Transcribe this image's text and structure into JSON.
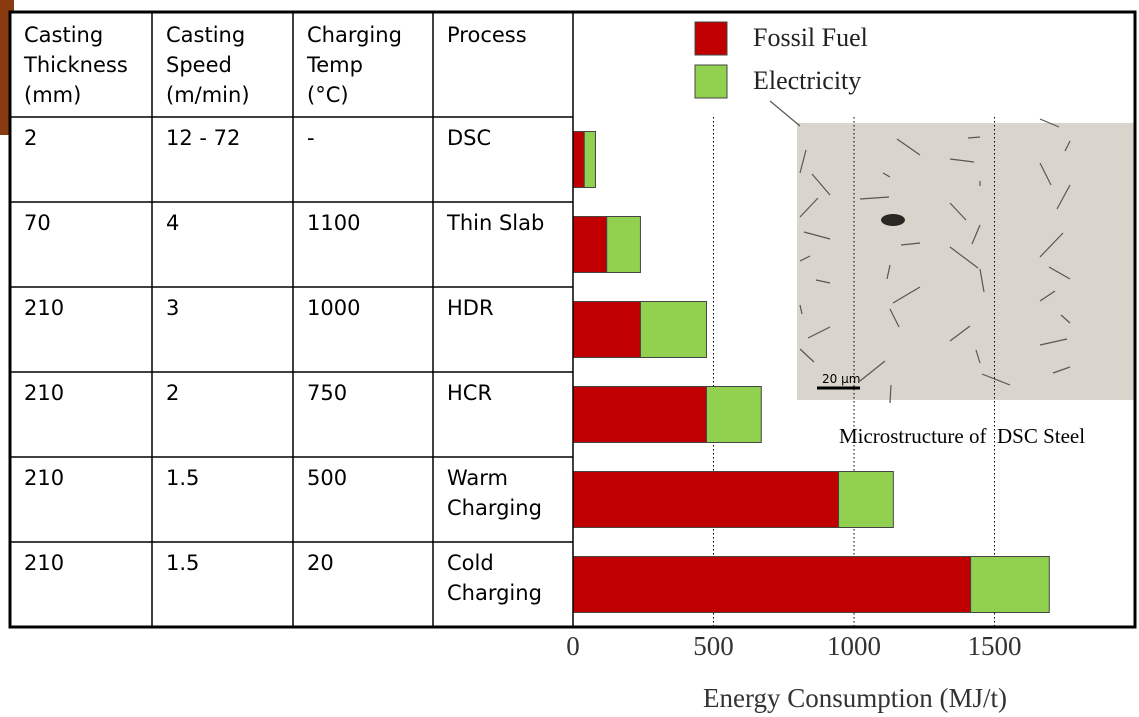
{
  "table": {
    "header": [
      [
        "Casting",
        "Thickness",
        "(mm)"
      ],
      [
        "Casting",
        "Speed",
        "(m/min)"
      ],
      [
        "Charging",
        "Temp",
        "(°C)"
      ],
      [
        "Process"
      ]
    ],
    "rows": [
      [
        "2",
        "12 - 72",
        "-",
        "DSC"
      ],
      [
        "70",
        "4",
        "1100",
        "Thin Slab"
      ],
      [
        "210",
        "3",
        "1000",
        "HDR"
      ],
      [
        "210",
        "2",
        "750",
        "HCR"
      ],
      [
        "210",
        "1.5",
        "500",
        "Warm Charging"
      ],
      [
        "210",
        "1.5",
        "20",
        "Cold Charging"
      ]
    ]
  },
  "chart_data": {
    "type": "stacked-barh",
    "xlabel": "Energy Consumption (MJ/t)",
    "series": [
      {
        "name": "Fossil Fuel",
        "color": "#c00000",
        "values": [
          40,
          120,
          240,
          475,
          945,
          1415
        ]
      },
      {
        "name": "Electricity",
        "color": "#92d050",
        "values": [
          40,
          120,
          235,
          195,
          195,
          280
        ]
      }
    ],
    "xlim": [
      0,
      2000
    ],
    "xticks": [
      0,
      500,
      1000,
      1500
    ],
    "grid": true
  },
  "photo": {
    "caption": "Microstructure of  DSC Steel",
    "scale_label": "20 µm"
  }
}
